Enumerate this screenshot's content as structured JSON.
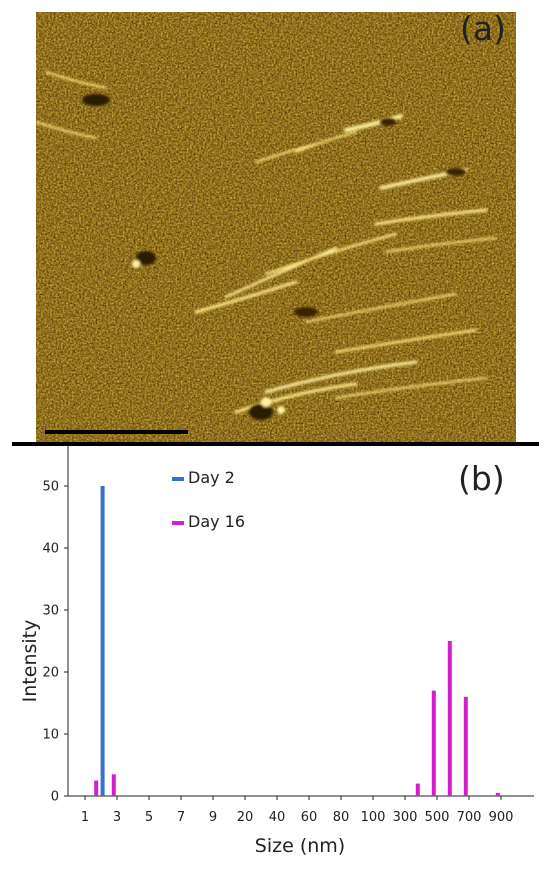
{
  "panel_a": {
    "label": "(a)",
    "image": {
      "description_name": "afm-micrograph"
    }
  },
  "panel_b": {
    "label": "(b)"
  },
  "colors": {
    "day2": "#3a6fcf",
    "day16": "#d21fd0",
    "afm_base": "#7a5a10",
    "afm_bright": "#ffe96a",
    "afm_dark": "#2b1a00"
  },
  "chart_data": {
    "type": "bar",
    "title": "",
    "xlabel": "Size (nm)",
    "ylabel": "Intensity",
    "ylim": [
      0,
      55
    ],
    "y_ticks": [
      0,
      10,
      20,
      30,
      40,
      50
    ],
    "x_tick_labels": [
      "1",
      "3",
      "5",
      "7",
      "9",
      "20",
      "40",
      "60",
      "80",
      "100",
      "300",
      "500",
      "700",
      "900"
    ],
    "legend_position": "top-center",
    "series": [
      {
        "name": "Day 2",
        "color": "#3a6fcf",
        "points": [
          {
            "x": 2.1,
            "y": 50
          }
        ]
      },
      {
        "name": "Day 16",
        "color": "#d21fd0",
        "points": [
          {
            "x": 1.7,
            "y": 2.5
          },
          {
            "x": 2.8,
            "y": 3.5
          },
          {
            "x": 380,
            "y": 2
          },
          {
            "x": 480,
            "y": 17
          },
          {
            "x": 580,
            "y": 25
          },
          {
            "x": 680,
            "y": 16
          },
          {
            "x": 880,
            "y": 0.5
          }
        ]
      }
    ]
  }
}
